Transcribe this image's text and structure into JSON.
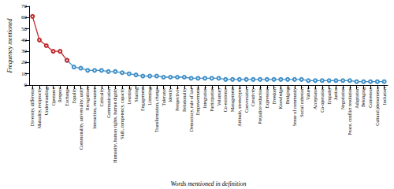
{
  "chart_data": {
    "type": "line",
    "x_label": "Words mentioned in definition",
    "y_label": "Frequency mentioned",
    "categories": [
      "Diversity, difference",
      "Mutuality, reciprocity",
      "Understanding",
      "Openness",
      "Respect",
      "Exchange",
      "Equality",
      "Commonality, universality, unity",
      "Recognition",
      "Interaction, encounter",
      "Criticality",
      "Communication",
      "Humanity, human rights, human dignity",
      "Skill, competency, capacity",
      "Learning",
      "Sharing",
      "Engagement",
      "Listening",
      "Transformation, change",
      "Tolerance",
      "Identity",
      "Perspectives",
      "Relationality",
      "Democracy, rule of law",
      "Empowerment",
      "Integration",
      "Participation",
      "Voluntary",
      "Co-existence",
      "Management",
      "Attitude, stereotypes",
      "Conversation",
      "Creativity",
      "Prejudice reduction",
      "Expression",
      "Freedom",
      "Knowledge",
      "Bridging",
      "Sense of community",
      "Social cohesion",
      "Values",
      "Acceptance",
      "Co-operation",
      "Empathy",
      "Justice",
      "Negotiation",
      "Peace, conflict resolution",
      "Adaptation",
      "Belonging",
      "Consensus",
      "Cultural phenomena",
      "Inclusion"
    ],
    "series": [
      {
        "color": "#3f8fc8",
        "marker": "emptyCircle",
        "values": [
          null,
          null,
          null,
          null,
          null,
          22,
          16,
          15,
          13,
          13,
          13,
          12,
          12,
          11,
          10,
          9,
          8,
          8,
          8,
          7,
          7,
          7,
          7,
          6,
          6,
          6,
          6,
          6,
          5,
          5,
          5,
          5,
          5,
          5,
          5,
          5,
          5,
          5,
          5,
          5,
          4,
          4,
          4,
          4,
          4,
          4,
          4,
          3,
          3,
          3,
          3,
          3
        ]
      },
      {
        "color": "#c0282b",
        "marker": "emptyCircle",
        "values": [
          61,
          40,
          35,
          30,
          30,
          22,
          null,
          null,
          null,
          null,
          null,
          null,
          null,
          null,
          null,
          null,
          null,
          null,
          null,
          null,
          null,
          null,
          null,
          null,
          null,
          null,
          null,
          null,
          null,
          null,
          null,
          null,
          null,
          null,
          null,
          null,
          null,
          null,
          null,
          null,
          null,
          null,
          null,
          null,
          null,
          null,
          null,
          null,
          null,
          null,
          null,
          null
        ]
      }
    ],
    "ylim": [
      0,
      70
    ],
    "yticks": [
      0,
      10,
      20,
      30,
      40,
      50,
      60,
      70
    ],
    "grid": false
  }
}
